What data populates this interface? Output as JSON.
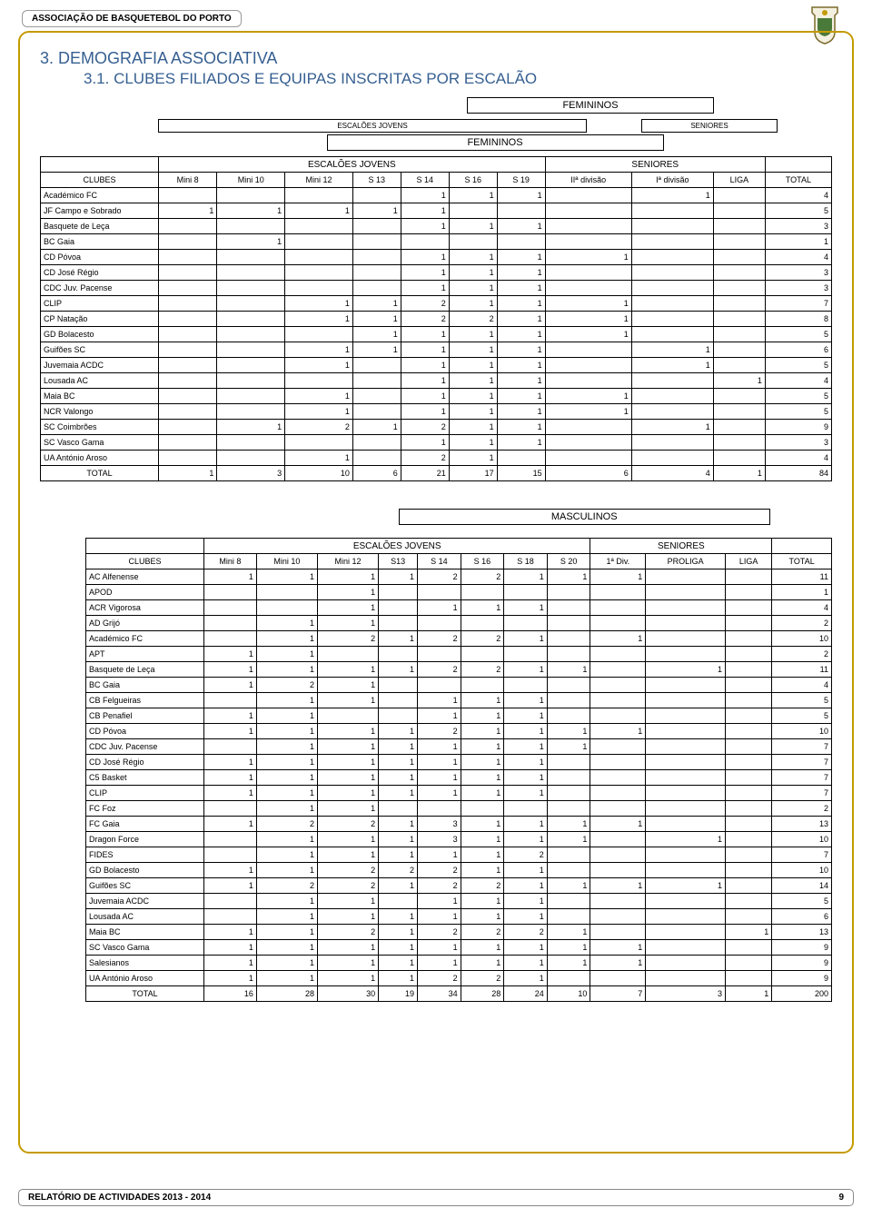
{
  "header": {
    "association": "ASSOCIAÇÃO DE BASQUETEBOL DO PORTO"
  },
  "titles": {
    "t1": "3. DEMOGRAFIA ASSOCIATIVA",
    "t2": "3.1. CLUBES FILIADOS E EQUIPAS INSCRITAS POR ESCALÃO"
  },
  "labels": {
    "femininos": "FEMININOS",
    "masculinos": "MASCULINOS",
    "escaloes_jovens_upper": "ESCALÕES JOVENS",
    "escaloes_jovens_small": "ESCALÕES JOVENS",
    "seniores_upper": "SENIORES",
    "seniores_small": "SENIORES",
    "clubes": "CLUBES",
    "total": "TOTAL"
  },
  "fem": {
    "cols": [
      "Mini 8",
      "Mini 10",
      "Mini 12",
      "S 13",
      "S 14",
      "S 16",
      "S 19",
      "IIª divisão",
      "Iª divisão",
      "LIGA",
      "TOTAL"
    ],
    "rows": [
      {
        "club": "Académico FC",
        "v": [
          "",
          "",
          "",
          "",
          "1",
          "1",
          "1",
          "",
          "1",
          "",
          "4"
        ]
      },
      {
        "club": "JF Campo e Sobrado",
        "v": [
          "1",
          "1",
          "1",
          "1",
          "1",
          "",
          "",
          "",
          "",
          "",
          "5"
        ]
      },
      {
        "club": "Basquete de Leça",
        "v": [
          "",
          "",
          "",
          "",
          "1",
          "1",
          "1",
          "",
          "",
          "",
          "3"
        ]
      },
      {
        "club": "BC Gaia",
        "v": [
          "",
          "1",
          "",
          "",
          "",
          "",
          "",
          "",
          "",
          "",
          "1"
        ]
      },
      {
        "club": "CD Póvoa",
        "v": [
          "",
          "",
          "",
          "",
          "1",
          "1",
          "1",
          "1",
          "",
          "",
          "4"
        ]
      },
      {
        "club": "CD José Régio",
        "v": [
          "",
          "",
          "",
          "",
          "1",
          "1",
          "1",
          "",
          "",
          "",
          "3"
        ]
      },
      {
        "club": "CDC Juv. Pacense",
        "v": [
          "",
          "",
          "",
          "",
          "1",
          "1",
          "1",
          "",
          "",
          "",
          "3"
        ]
      },
      {
        "club": "CLIP",
        "v": [
          "",
          "",
          "1",
          "1",
          "2",
          "1",
          "1",
          "1",
          "",
          "",
          "7"
        ]
      },
      {
        "club": "CP Natação",
        "v": [
          "",
          "",
          "1",
          "1",
          "2",
          "2",
          "1",
          "1",
          "",
          "",
          "8"
        ]
      },
      {
        "club": "GD Bolacesto",
        "v": [
          "",
          "",
          "",
          "1",
          "1",
          "1",
          "1",
          "1",
          "",
          "",
          "5"
        ]
      },
      {
        "club": "Guifões SC",
        "v": [
          "",
          "",
          "1",
          "1",
          "1",
          "1",
          "1",
          "",
          "1",
          "",
          "6"
        ]
      },
      {
        "club": "Juvemaia ACDC",
        "v": [
          "",
          "",
          "1",
          "",
          "1",
          "1",
          "1",
          "",
          "1",
          "",
          "5"
        ]
      },
      {
        "club": "Lousada AC",
        "v": [
          "",
          "",
          "",
          "",
          "1",
          "1",
          "1",
          "",
          "",
          "1",
          "4"
        ]
      },
      {
        "club": "Maia BC",
        "v": [
          "",
          "",
          "1",
          "",
          "1",
          "1",
          "1",
          "1",
          "",
          "",
          "5"
        ]
      },
      {
        "club": "NCR Valongo",
        "v": [
          "",
          "",
          "1",
          "",
          "1",
          "1",
          "1",
          "1",
          "",
          "",
          "5"
        ]
      },
      {
        "club": "SC Coimbrões",
        "v": [
          "",
          "1",
          "2",
          "1",
          "2",
          "1",
          "1",
          "",
          "1",
          "",
          "9"
        ]
      },
      {
        "club": "SC Vasco Gama",
        "v": [
          "",
          "",
          "",
          "",
          "1",
          "1",
          "1",
          "",
          "",
          "",
          "3"
        ]
      },
      {
        "club": "UA António Aroso",
        "v": [
          "",
          "",
          "1",
          "",
          "2",
          "1",
          "",
          "",
          "",
          "",
          "4"
        ]
      }
    ],
    "totals": [
      "1",
      "3",
      "10",
      "6",
      "21",
      "17",
      "15",
      "6",
      "4",
      "1",
      "84"
    ]
  },
  "masc": {
    "cols": [
      "Mini 8",
      "Mini 10",
      "Mini 12",
      "S13",
      "S 14",
      "S 16",
      "S 18",
      "S 20",
      "1ª Div.",
      "PROLIGA",
      "LIGA",
      "TOTAL"
    ],
    "rows": [
      {
        "club": "AC Alfenense",
        "v": [
          "1",
          "1",
          "1",
          "1",
          "2",
          "2",
          "1",
          "1",
          "1",
          "",
          "",
          "11"
        ]
      },
      {
        "club": "APOD",
        "v": [
          "",
          "",
          "1",
          "",
          "",
          "",
          "",
          "",
          "",
          "",
          "",
          "1"
        ]
      },
      {
        "club": "ACR Vigorosa",
        "v": [
          "",
          "",
          "1",
          "",
          "1",
          "1",
          "1",
          "",
          "",
          "",
          "",
          "4"
        ]
      },
      {
        "club": "AD Grijó",
        "v": [
          "",
          "1",
          "1",
          "",
          "",
          "",
          "",
          "",
          "",
          "",
          "",
          "2"
        ]
      },
      {
        "club": "Académico FC",
        "v": [
          "",
          "1",
          "2",
          "1",
          "2",
          "2",
          "1",
          "",
          "1",
          "",
          "",
          "10"
        ]
      },
      {
        "club": "APT",
        "v": [
          "1",
          "1",
          "",
          "",
          "",
          "",
          "",
          "",
          "",
          "",
          "",
          "2"
        ]
      },
      {
        "club": "Basquete de Leça",
        "v": [
          "1",
          "1",
          "1",
          "1",
          "2",
          "2",
          "1",
          "1",
          "",
          "1",
          "",
          "11"
        ]
      },
      {
        "club": "BC Gaia",
        "v": [
          "1",
          "2",
          "1",
          "",
          "",
          "",
          "",
          "",
          "",
          "",
          "",
          "4"
        ]
      },
      {
        "club": "CB Felgueiras",
        "v": [
          "",
          "1",
          "1",
          "",
          "1",
          "1",
          "1",
          "",
          "",
          "",
          "",
          "5"
        ]
      },
      {
        "club": "CB Penafiel",
        "v": [
          "1",
          "1",
          "",
          "",
          "1",
          "1",
          "1",
          "",
          "",
          "",
          "",
          "5"
        ]
      },
      {
        "club": "CD Póvoa",
        "v": [
          "1",
          "1",
          "1",
          "1",
          "2",
          "1",
          "1",
          "1",
          "1",
          "",
          "",
          "10"
        ]
      },
      {
        "club": "CDC Juv. Pacense",
        "v": [
          "",
          "1",
          "1",
          "1",
          "1",
          "1",
          "1",
          "1",
          "",
          "",
          "",
          "7"
        ]
      },
      {
        "club": "CD José Régio",
        "v": [
          "1",
          "1",
          "1",
          "1",
          "1",
          "1",
          "1",
          "",
          "",
          "",
          "",
          "7"
        ]
      },
      {
        "club": "C5 Basket",
        "v": [
          "1",
          "1",
          "1",
          "1",
          "1",
          "1",
          "1",
          "",
          "",
          "",
          "",
          "7"
        ]
      },
      {
        "club": "CLIP",
        "v": [
          "1",
          "1",
          "1",
          "1",
          "1",
          "1",
          "1",
          "",
          "",
          "",
          "",
          "7"
        ]
      },
      {
        "club": "FC Foz",
        "v": [
          "",
          "1",
          "1",
          "",
          "",
          "",
          "",
          "",
          "",
          "",
          "",
          "2"
        ]
      },
      {
        "club": "FC Gaia",
        "v": [
          "1",
          "2",
          "2",
          "1",
          "3",
          "1",
          "1",
          "1",
          "1",
          "",
          "",
          "13"
        ]
      },
      {
        "club": "Dragon Force",
        "v": [
          "",
          "1",
          "1",
          "1",
          "3",
          "1",
          "1",
          "1",
          "",
          "1",
          "",
          "10"
        ]
      },
      {
        "club": "FIDES",
        "v": [
          "",
          "1",
          "1",
          "1",
          "1",
          "1",
          "2",
          "",
          "",
          "",
          "",
          "7"
        ]
      },
      {
        "club": "GD Bolacesto",
        "v": [
          "1",
          "1",
          "2",
          "2",
          "2",
          "1",
          "1",
          "",
          "",
          "",
          "",
          "10"
        ]
      },
      {
        "club": "Guifões SC",
        "v": [
          "1",
          "2",
          "2",
          "1",
          "2",
          "2",
          "1",
          "1",
          "1",
          "1",
          "",
          "14"
        ]
      },
      {
        "club": "Juvemaia ACDC",
        "v": [
          "",
          "1",
          "1",
          "",
          "1",
          "1",
          "1",
          "",
          "",
          "",
          "",
          "5"
        ]
      },
      {
        "club": "Lousada AC",
        "v": [
          "",
          "1",
          "1",
          "1",
          "1",
          "1",
          "1",
          "",
          "",
          "",
          "",
          "6"
        ]
      },
      {
        "club": "Maia BC",
        "v": [
          "1",
          "1",
          "2",
          "1",
          "2",
          "2",
          "2",
          "1",
          "",
          "",
          "1",
          "13"
        ]
      },
      {
        "club": "SC Vasco Gama",
        "v": [
          "1",
          "1",
          "1",
          "1",
          "1",
          "1",
          "1",
          "1",
          "1",
          "",
          "",
          "9"
        ]
      },
      {
        "club": "Salesianos",
        "v": [
          "1",
          "1",
          "1",
          "1",
          "1",
          "1",
          "1",
          "1",
          "1",
          "",
          "",
          "9"
        ]
      },
      {
        "club": "UA António Aroso",
        "v": [
          "1",
          "1",
          "1",
          "1",
          "2",
          "2",
          "1",
          "",
          "",
          "",
          "",
          "9"
        ]
      }
    ],
    "totals": [
      "16",
      "28",
      "30",
      "19",
      "34",
      "28",
      "24",
      "10",
      "7",
      "3",
      "1",
      "200"
    ]
  },
  "footer": {
    "text": "RELATÓRIO DE ACTIVIDADES 2013 - 2014",
    "page": "9"
  }
}
